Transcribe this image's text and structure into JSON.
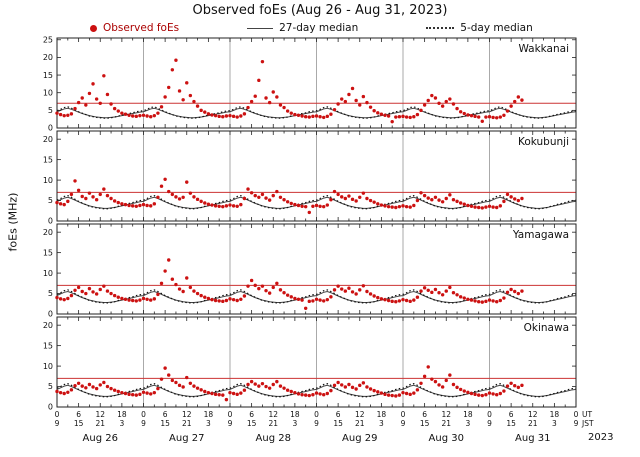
{
  "title": "Observed foEs (Aug 26 - Aug 31, 2023)",
  "legend": {
    "observed": "Observed foEs",
    "median27": "27-day median",
    "median5": "5-day median"
  },
  "axis_side": {
    "ut": "UT",
    "jst": "JST",
    "year": "2023"
  },
  "chart_data": {
    "type": "scatter",
    "title": "Observed foEs (Aug 26 - Aug 31, 2023)",
    "ylabel": "foEs (MHz)",
    "x_range_hours": [
      0,
      144
    ],
    "x_major_tick_hours": 6,
    "x_minor_tick_hours": 3,
    "grid": "vertical-day-lines",
    "legend_position": "top",
    "red_line_mhz": 7,
    "colors": {
      "observed": "#cc1111",
      "median": "#444444",
      "median5": "#111111",
      "red_line": "#cc3333",
      "grid": "#aaaaaa",
      "frame": "#222222"
    },
    "ut_tick_labels": [
      "0",
      "6",
      "12",
      "18",
      "0",
      "6",
      "12",
      "18",
      "0",
      "6",
      "12",
      "18",
      "0",
      "6",
      "12",
      "18",
      "0",
      "6",
      "12",
      "18",
      "0",
      "6",
      "12",
      "18",
      "0"
    ],
    "jst_tick_labels": [
      "9",
      "15",
      "21",
      "3",
      "9",
      "15",
      "21",
      "3",
      "9",
      "15",
      "21",
      "3",
      "9",
      "15",
      "21",
      "3",
      "9",
      "15",
      "21",
      "3",
      "9",
      "15",
      "21",
      "3",
      "9"
    ],
    "day_labels": [
      "Aug 26",
      "Aug 27",
      "Aug 28",
      "Aug 29",
      "Aug 30",
      "Aug 31"
    ],
    "panels": [
      {
        "name": "Wakkanai",
        "ylim": [
          0,
          25.5
        ],
        "yticks": [
          0,
          5,
          10,
          15,
          20,
          25
        ],
        "observed_hourly": [
          [
            4.2,
            3.8,
            3.5,
            3.6,
            4.0,
            5.5,
            7.2,
            8.5,
            6.5,
            9.8,
            12.5,
            8.2,
            7.0,
            14.8,
            9.5,
            6.8,
            5.5,
            4.8,
            4.2,
            3.9,
            3.6,
            3.4,
            3.3,
            3.5
          ],
          [
            3.6,
            3.4,
            3.2,
            3.5,
            4.2,
            6.0,
            8.8,
            11.5,
            16.5,
            19.2,
            10.5,
            8.0,
            12.8,
            9.2,
            7.5,
            6.2,
            5.0,
            4.5,
            4.0,
            3.7,
            3.5,
            3.3,
            3.2,
            3.4
          ],
          [
            3.5,
            3.3,
            3.1,
            3.4,
            4.0,
            5.8,
            7.5,
            9.0,
            13.5,
            18.8,
            8.5,
            7.2,
            10.2,
            8.8,
            6.5,
            5.8,
            4.8,
            4.2,
            3.8,
            3.6,
            3.4,
            3.2,
            3.1,
            3.3
          ],
          [
            3.4,
            3.2,
            3.0,
            3.3,
            3.9,
            5.2,
            6.8,
            8.2,
            7.5,
            9.5,
            11.2,
            7.8,
            6.5,
            8.9,
            7.2,
            5.9,
            4.9,
            4.3,
            3.9,
            3.6,
            3.4,
            1.8,
            3.1,
            3.2
          ],
          [
            3.3,
            3.1,
            3.0,
            3.2,
            3.8,
            5.0,
            6.5,
            7.8,
            9.2,
            8.5,
            7.0,
            6.2,
            7.5,
            8.2,
            6.8,
            5.5,
            4.6,
            4.1,
            3.7,
            3.5,
            3.3,
            3.1,
            1.9,
            3.1
          ],
          [
            3.2,
            3.0,
            2.9,
            3.1,
            3.6,
            4.8,
            6.2,
            7.5,
            8.8,
            7.9,
            null,
            null,
            null,
            null,
            null,
            null,
            null,
            null,
            null,
            null,
            null,
            null,
            null,
            null
          ]
        ],
        "median27_cycle": [
          4.6,
          5.0,
          5.4,
          5.6,
          5.3,
          4.9,
          4.5,
          4.1,
          3.8,
          3.5,
          3.3,
          3.1,
          3.0,
          2.9,
          2.9,
          3.0,
          3.1,
          3.3,
          3.5,
          3.7,
          3.9,
          4.1,
          4.3,
          4.5
        ],
        "median5_cycle": [
          4.9,
          5.3,
          5.8,
          6.0,
          5.6,
          5.1,
          4.6,
          4.2,
          3.8,
          3.4,
          3.2,
          3.0,
          2.9,
          2.8,
          2.8,
          2.9,
          3.1,
          3.4,
          3.6,
          3.9,
          4.1,
          4.3,
          4.6,
          4.8
        ]
      },
      {
        "name": "Kokubunji",
        "ylim": [
          0,
          22
        ],
        "yticks": [
          0,
          5,
          10,
          15,
          20
        ],
        "observed_hourly": [
          [
            4.5,
            4.2,
            4.0,
            4.8,
            6.5,
            9.8,
            7.5,
            6.0,
            5.5,
            6.8,
            5.9,
            5.2,
            6.5,
            7.8,
            6.2,
            5.5,
            4.9,
            4.5,
            4.2,
            4.0,
            3.8,
            3.7,
            3.6,
            3.8
          ],
          [
            4.0,
            3.8,
            3.7,
            4.2,
            5.8,
            8.5,
            10.2,
            7.2,
            6.5,
            5.9,
            5.4,
            5.8,
            9.5,
            6.8,
            5.9,
            5.3,
            4.8,
            4.4,
            4.1,
            3.9,
            3.7,
            3.6,
            3.5,
            3.7
          ],
          [
            3.9,
            3.7,
            3.6,
            4.0,
            5.5,
            7.8,
            6.9,
            6.2,
            5.8,
            6.5,
            5.6,
            5.1,
            6.2,
            7.2,
            5.8,
            5.2,
            4.7,
            4.3,
            4.0,
            3.8,
            3.6,
            3.5,
            2.1,
            3.6
          ],
          [
            3.8,
            3.6,
            3.5,
            3.9,
            5.2,
            7.2,
            6.5,
            5.9,
            5.5,
            6.1,
            5.3,
            4.9,
            5.8,
            6.8,
            5.5,
            5.0,
            4.6,
            4.2,
            3.9,
            3.7,
            3.5,
            3.4,
            3.3,
            3.5
          ],
          [
            3.7,
            3.5,
            3.4,
            3.8,
            5.0,
            6.9,
            6.2,
            5.6,
            5.2,
            5.8,
            5.1,
            4.7,
            5.5,
            6.4,
            5.2,
            4.8,
            4.4,
            4.1,
            3.8,
            3.6,
            3.4,
            3.3,
            3.2,
            3.4
          ],
          [
            3.6,
            3.4,
            3.3,
            3.7,
            4.8,
            6.5,
            5.9,
            5.4,
            5.0,
            5.5,
            null,
            null,
            null,
            null,
            null,
            null,
            null,
            null,
            null,
            null,
            null,
            null,
            null,
            null
          ]
        ],
        "median27_cycle": [
          4.8,
          5.2,
          5.6,
          5.8,
          5.5,
          5.1,
          4.7,
          4.3,
          4.0,
          3.7,
          3.5,
          3.3,
          3.2,
          3.1,
          3.1,
          3.2,
          3.3,
          3.5,
          3.7,
          3.9,
          4.1,
          4.3,
          4.5,
          4.7
        ],
        "median5_cycle": [
          5.1,
          5.5,
          6.0,
          6.2,
          5.8,
          5.3,
          4.8,
          4.4,
          4.0,
          3.6,
          3.4,
          3.2,
          3.1,
          3.0,
          3.0,
          3.1,
          3.3,
          3.6,
          3.8,
          4.1,
          4.3,
          4.5,
          4.8,
          5.0
        ]
      },
      {
        "name": "Yamagawa",
        "ylim": [
          0,
          22
        ],
        "yticks": [
          0,
          5,
          10,
          15,
          20
        ],
        "observed_hourly": [
          [
            4.0,
            3.7,
            3.5,
            3.8,
            4.5,
            5.8,
            6.5,
            5.5,
            5.0,
            6.2,
            5.4,
            4.9,
            6.0,
            6.8,
            5.6,
            5.0,
            4.5,
            4.1,
            3.8,
            3.6,
            3.4,
            3.3,
            3.2,
            3.4
          ],
          [
            3.8,
            3.6,
            3.4,
            3.7,
            4.8,
            7.5,
            10.5,
            13.2,
            8.5,
            7.2,
            6.1,
            5.5,
            8.8,
            6.5,
            5.6,
            5.0,
            4.5,
            4.1,
            3.8,
            3.5,
            3.3,
            3.2,
            3.1,
            3.3
          ],
          [
            3.7,
            3.5,
            3.3,
            3.6,
            4.4,
            6.8,
            8.2,
            7.0,
            6.2,
            6.8,
            5.7,
            5.1,
            6.5,
            7.5,
            5.9,
            5.2,
            4.6,
            4.2,
            3.8,
            3.6,
            3.4,
            1.4,
            3.1,
            3.2
          ],
          [
            3.6,
            3.4,
            3.2,
            3.5,
            4.2,
            5.9,
            6.8,
            6.1,
            5.6,
            6.3,
            5.4,
            4.9,
            5.9,
            6.9,
            5.5,
            4.9,
            4.4,
            4.0,
            3.7,
            3.5,
            3.3,
            3.1,
            3.0,
            3.2
          ],
          [
            3.5,
            3.3,
            3.1,
            3.4,
            4.1,
            5.6,
            6.4,
            5.8,
            5.3,
            6.0,
            5.2,
            4.7,
            5.6,
            6.5,
            5.2,
            4.7,
            4.2,
            3.9,
            3.6,
            3.4,
            3.2,
            3.0,
            2.9,
            3.1
          ],
          [
            3.4,
            3.2,
            3.0,
            3.3,
            3.9,
            5.3,
            6.0,
            5.5,
            5.0,
            5.6,
            null,
            null,
            null,
            null,
            null,
            null,
            null,
            null,
            null,
            null,
            null,
            null,
            null,
            null
          ]
        ],
        "median27_cycle": [
          4.5,
          4.9,
          5.3,
          5.5,
          5.2,
          4.8,
          4.4,
          4.0,
          3.7,
          3.4,
          3.2,
          3.0,
          2.9,
          2.8,
          2.8,
          2.9,
          3.0,
          3.2,
          3.4,
          3.6,
          3.8,
          4.0,
          4.2,
          4.4
        ],
        "median5_cycle": [
          4.8,
          5.2,
          5.7,
          5.9,
          5.5,
          5.0,
          4.5,
          4.1,
          3.7,
          3.3,
          3.1,
          2.9,
          2.8,
          2.7,
          2.7,
          2.8,
          3.0,
          3.3,
          3.5,
          3.8,
          4.0,
          4.2,
          4.5,
          4.7
        ]
      },
      {
        "name": "Okinawa",
        "ylim": [
          0,
          22
        ],
        "yticks": [
          0,
          5,
          10,
          15,
          20
        ],
        "observed_hourly": [
          [
            3.8,
            3.5,
            3.3,
            3.6,
            4.2,
            5.2,
            5.8,
            5.1,
            4.7,
            5.5,
            4.9,
            4.5,
            5.4,
            6.0,
            5.0,
            4.5,
            4.1,
            3.8,
            3.5,
            3.3,
            3.1,
            3.0,
            2.9,
            3.1
          ],
          [
            3.6,
            3.4,
            3.2,
            3.5,
            4.5,
            6.8,
            9.5,
            7.8,
            6.5,
            6.0,
            5.3,
            4.9,
            7.2,
            5.8,
            5.1,
            4.6,
            4.2,
            3.8,
            3.5,
            3.3,
            3.1,
            3.0,
            2.9,
            1.8
          ],
          [
            3.5,
            3.3,
            3.1,
            3.4,
            4.1,
            5.5,
            6.2,
            5.6,
            5.1,
            5.7,
            5.0,
            4.6,
            5.5,
            6.2,
            5.1,
            4.6,
            4.1,
            3.8,
            3.5,
            3.2,
            3.0,
            2.9,
            2.8,
            3.0
          ],
          [
            3.4,
            3.2,
            3.0,
            3.3,
            4.0,
            5.3,
            6.0,
            5.4,
            4.9,
            5.5,
            4.8,
            4.4,
            5.3,
            5.9,
            4.9,
            4.4,
            4.0,
            3.7,
            3.4,
            3.1,
            2.9,
            2.8,
            2.7,
            2.9
          ],
          [
            3.5,
            3.3,
            3.1,
            3.4,
            4.2,
            5.8,
            7.5,
            9.8,
            6.8,
            6.2,
            5.4,
            4.9,
            6.5,
            7.8,
            5.5,
            4.8,
            4.3,
            3.9,
            3.6,
            3.3,
            3.1,
            2.9,
            2.8,
            3.0
          ],
          [
            3.4,
            3.2,
            3.0,
            3.3,
            3.9,
            5.1,
            5.8,
            5.2,
            4.8,
            5.3,
            null,
            null,
            null,
            null,
            null,
            null,
            null,
            null,
            null,
            null,
            null,
            null,
            null,
            null
          ]
        ],
        "median27_cycle": [
          4.3,
          4.7,
          5.1,
          5.3,
          5.0,
          4.6,
          4.2,
          3.8,
          3.5,
          3.2,
          3.0,
          2.8,
          2.7,
          2.6,
          2.6,
          2.7,
          2.8,
          3.0,
          3.2,
          3.4,
          3.6,
          3.8,
          4.0,
          4.2
        ],
        "median5_cycle": [
          4.6,
          5.0,
          5.5,
          5.7,
          5.3,
          4.8,
          4.3,
          3.9,
          3.5,
          3.1,
          2.9,
          2.7,
          2.6,
          2.5,
          2.5,
          2.6,
          2.8,
          3.1,
          3.3,
          3.6,
          3.8,
          4.0,
          4.3,
          4.5
        ]
      }
    ]
  }
}
